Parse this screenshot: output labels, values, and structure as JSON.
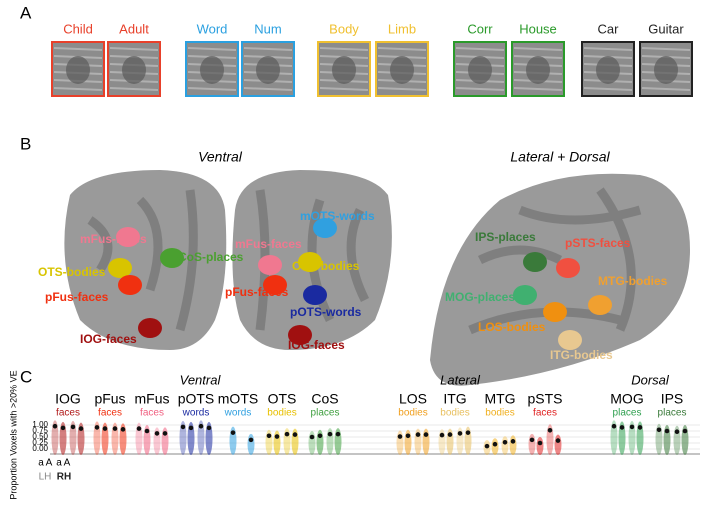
{
  "panel_a": {
    "label": "A",
    "stimuli": [
      {
        "text": "Child",
        "color": "#e8402a"
      },
      {
        "text": "Adult",
        "color": "#e8402a"
      },
      {
        "text": "Word",
        "color": "#2aa0e0"
      },
      {
        "text": "Num",
        "color": "#2aa0e0"
      },
      {
        "text": "Body",
        "color": "#f0c030"
      },
      {
        "text": "Limb",
        "color": "#f0c030"
      },
      {
        "text": "Corr",
        "color": "#2a9a2a"
      },
      {
        "text": "House",
        "color": "#2a9a2a"
      },
      {
        "text": "Car",
        "color": "#222222"
      },
      {
        "text": "Guitar",
        "color": "#222222"
      }
    ]
  },
  "panel_b": {
    "label": "B",
    "views": [
      "Ventral",
      "Lateral + Dorsal"
    ],
    "regions": [
      {
        "text": "mFus-faces",
        "color": "#f07890"
      },
      {
        "text": "OTS-bodies",
        "color": "#d8c400"
      },
      {
        "text": "pFus-faces",
        "color": "#f03010"
      },
      {
        "text": "CoS-places",
        "color": "#4aa030"
      },
      {
        "text": "IOG-faces",
        "color": "#a01010"
      },
      {
        "text": "mFus-faces",
        "color": "#f07890"
      },
      {
        "text": "mOTS-words",
        "color": "#30a0e0"
      },
      {
        "text": "OTS-bodies",
        "color": "#d8c400"
      },
      {
        "text": "pFus-faces",
        "color": "#f03010"
      },
      {
        "text": "pOTS-words",
        "color": "#1a2aa0"
      },
      {
        "text": "IOG-faces",
        "color": "#a01010"
      },
      {
        "text": "IPS-places",
        "color": "#3a7a3a"
      },
      {
        "text": "pSTS-faces",
        "color": "#f05040"
      },
      {
        "text": "MTG-bodies",
        "color": "#f0a030"
      },
      {
        "text": "MOG-places",
        "color": "#40b070"
      },
      {
        "text": "LOS-bodies",
        "color": "#f09010"
      },
      {
        "text": "ITG-bodies",
        "color": "#e8c890"
      }
    ]
  },
  "panel_c_label": "C",
  "chart_data": {
    "type": "violin",
    "groups": [
      "Ventral",
      "Lateral",
      "Dorsal"
    ],
    "categories": [
      "IOG",
      "pFus",
      "mFus",
      "pOTS",
      "mOTS",
      "OTS",
      "CoS",
      "LOS",
      "ITG",
      "MTG",
      "pSTS",
      "MOG",
      "IPS"
    ],
    "category_sublabels": [
      "faces",
      "faces",
      "faces",
      "words",
      "words",
      "bodies",
      "places",
      "bodies",
      "bodies",
      "bodies",
      "faces",
      "places",
      "places"
    ],
    "colors": [
      "#b01818",
      "#f03010",
      "#f06080",
      "#1a2aa0",
      "#30a0e0",
      "#e8c000",
      "#40a040",
      "#f0a020",
      "#e8c060",
      "#f0b020",
      "#e02020",
      "#30a050",
      "#3a7a3a"
    ],
    "y_label": "Proportion Voxels with >20% VE",
    "x_sublabels": [
      "a",
      "A",
      "a",
      "A"
    ],
    "hemispheres": [
      "LH",
      "RH"
    ],
    "series": [
      {
        "values": [
          0.95,
          0.9,
          0.85,
          0.92,
          null,
          0.55,
          0.5,
          0.52,
          0.58,
          0.12,
          0.38,
          0.95,
          0.8
        ]
      },
      {
        "values": [
          0.88,
          0.85,
          0.75,
          0.88,
          0.68,
          0.52,
          0.55,
          0.55,
          0.6,
          0.2,
          0.25,
          0.9,
          0.75
        ]
      },
      {
        "values": [
          0.92,
          0.85,
          0.65,
          0.95,
          null,
          0.62,
          0.62,
          0.6,
          0.65,
          0.28,
          0.78,
          0.92,
          0.72
        ]
      },
      {
        "values": [
          0.85,
          0.82,
          0.65,
          0.88,
          0.38,
          0.6,
          0.62,
          0.6,
          0.68,
          0.32,
          0.35,
          0.9,
          0.75
        ]
      }
    ],
    "ylim": [
      0,
      1
    ],
    "yticks": [
      {
        "value": 0,
        "label": "0.00"
      },
      {
        "value": 0.25,
        "label": "0.25"
      },
      {
        "value": 0.5,
        "label": "0.50"
      },
      {
        "value": 0.75,
        "label": "0.75"
      },
      {
        "value": 1,
        "label": "1.00"
      }
    ],
    "grid": true
  }
}
